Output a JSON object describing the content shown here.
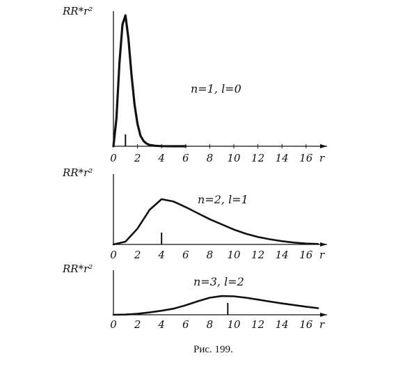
{
  "caption": "Рис. 199.",
  "chart_data": [
    {
      "type": "line",
      "ylabel": "RR*r²",
      "xlabel": "r",
      "annotation": "n=1,  l=0",
      "xlim": [
        0,
        18
      ],
      "ylim": [
        0,
        1
      ],
      "x_ticks": [
        "0",
        "2",
        "4",
        "6",
        "8",
        "10",
        "12",
        "14",
        "16"
      ],
      "peak_marker_x": 1,
      "series": [
        {
          "x": [
            0,
            0.25,
            0.5,
            0.75,
            1.0,
            1.25,
            1.5,
            1.75,
            2.0,
            2.25,
            2.5,
            2.75,
            3.0,
            3.5,
            4.0,
            5.0,
            6.0
          ],
          "values": [
            0,
            0.21,
            0.64,
            0.93,
            1.0,
            0.82,
            0.55,
            0.32,
            0.17,
            0.08,
            0.04,
            0.02,
            0.01,
            0.003,
            0.001,
            0,
            0
          ]
        }
      ]
    },
    {
      "type": "line",
      "ylabel": "RR*r²",
      "xlabel": "r",
      "annotation": "n=2,  l=1",
      "xlim": [
        0,
        18
      ],
      "ylim": [
        0,
        1
      ],
      "x_ticks": [
        "0",
        "2",
        "4",
        "6",
        "8",
        "10",
        "12",
        "14",
        "16"
      ],
      "peak_marker_x": 4,
      "series": [
        {
          "x": [
            0,
            1,
            2,
            3,
            4,
            5,
            6,
            7,
            8,
            9,
            10,
            11,
            12,
            13,
            14,
            15,
            16,
            17
          ],
          "values": [
            0,
            0.06,
            0.34,
            0.74,
            0.97,
            0.92,
            0.8,
            0.67,
            0.54,
            0.43,
            0.32,
            0.23,
            0.16,
            0.11,
            0.07,
            0.04,
            0.02,
            0.01
          ]
        }
      ]
    },
    {
      "type": "line",
      "ylabel": "RR*r²",
      "xlabel": "r",
      "annotation": "n=3,  l=2",
      "xlim": [
        0,
        18
      ],
      "ylim": [
        0,
        1
      ],
      "x_ticks": [
        "0",
        "2",
        "4",
        "6",
        "8",
        "10",
        "12",
        "14",
        "16"
      ],
      "peak_marker_x": 9.5,
      "series": [
        {
          "x": [
            0,
            1,
            2,
            3,
            4,
            5,
            6,
            7,
            8,
            9,
            10,
            11,
            12,
            13,
            14,
            15,
            16,
            17
          ],
          "values": [
            0,
            0.01,
            0.04,
            0.1,
            0.17,
            0.26,
            0.4,
            0.57,
            0.72,
            0.79,
            0.78,
            0.72,
            0.64,
            0.56,
            0.48,
            0.41,
            0.34,
            0.28
          ]
        }
      ]
    }
  ]
}
